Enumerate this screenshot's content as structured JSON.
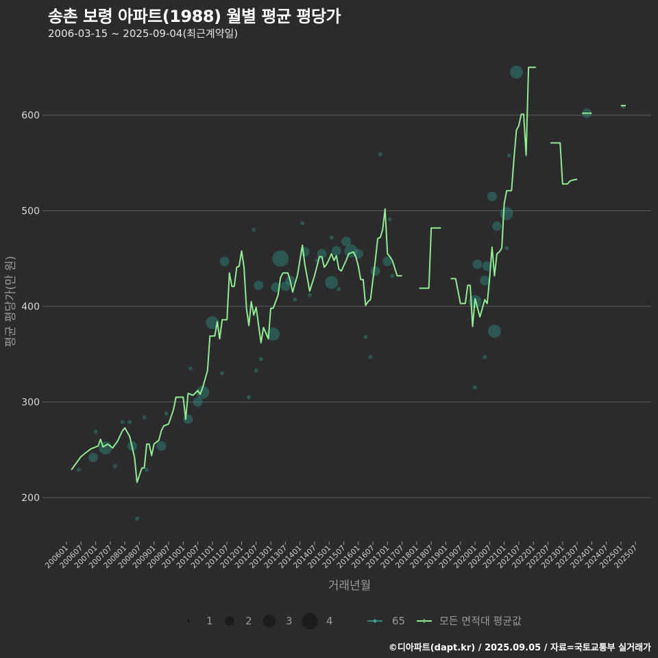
{
  "title": "송촌 보령 아파트(1988) 월별 평균 평당가",
  "subtitle": "2006-03-15 ~ 2025-09-04(최근계약일)",
  "footer": "©디아파트(dapt.kr) / 2025.09.05 / 자료=국토교통부 실거래가",
  "colors": {
    "background": "#2b2a2c",
    "line": "#90ee90",
    "bubble": "#2e8b80",
    "grid": "#5e5e5e"
  },
  "chart_data": {
    "type": "line",
    "title": "송촌 보령 아파트(1988) 월별 평균 평당가",
    "xlabel": "거래년월",
    "ylabel": "평균 평당가(만 원)",
    "ylim": [
      150,
      665
    ],
    "yticks": [
      200,
      300,
      400,
      500,
      600
    ],
    "xticks": [
      "200601",
      "200607",
      "200701",
      "200707",
      "200801",
      "200807",
      "200901",
      "200907",
      "201001",
      "201007",
      "201101",
      "201107",
      "201201",
      "201207",
      "201301",
      "201307",
      "201401",
      "201407",
      "201501",
      "201507",
      "201601",
      "201607",
      "201701",
      "201707",
      "201801",
      "201807",
      "201901",
      "201907",
      "202001",
      "202007",
      "202101",
      "202107",
      "202201",
      "202207",
      "202301",
      "202307",
      "202401",
      "202407",
      "202501",
      "202507"
    ],
    "grid": true,
    "legend": {
      "position": "bottom",
      "size_title": "",
      "sizes": [
        1,
        2,
        3,
        4
      ],
      "series_labels": [
        "65",
        "모든 면적대 평균값"
      ]
    },
    "line_series": {
      "name": "모든 면적대 평균값",
      "segments": [
        [
          [
            200603,
            229
          ],
          [
            200607,
            243
          ],
          [
            200609,
            247
          ],
          [
            200611,
            251
          ],
          [
            200702,
            254
          ],
          [
            200703,
            261
          ],
          [
            200704,
            253
          ],
          [
            200706,
            256
          ],
          [
            200708,
            252
          ],
          [
            200710,
            259
          ],
          [
            200712,
            270
          ],
          [
            200801,
            273
          ],
          [
            200803,
            264
          ],
          [
            200805,
            242
          ],
          [
            200806,
            216
          ],
          [
            200808,
            231
          ],
          [
            200809,
            231
          ],
          [
            200810,
            256
          ],
          [
            200811,
            256
          ],
          [
            200812,
            244
          ],
          [
            200901,
            256
          ],
          [
            200903,
            260
          ],
          [
            200904,
            270
          ],
          [
            200905,
            275
          ],
          [
            200907,
            277
          ],
          [
            200909,
            292
          ],
          [
            200910,
            305
          ],
          [
            201001,
            305
          ],
          [
            201002,
            282
          ],
          [
            201003,
            309
          ],
          [
            201005,
            307
          ],
          [
            201007,
            312
          ],
          [
            201008,
            308
          ],
          [
            201009,
            315
          ],
          [
            201011,
            333
          ],
          [
            201012,
            369
          ],
          [
            201102,
            369
          ],
          [
            201103,
            384
          ],
          [
            201104,
            366
          ],
          [
            201105,
            386
          ],
          [
            201107,
            386
          ],
          [
            201108,
            435
          ],
          [
            201109,
            421
          ],
          [
            201110,
            421
          ],
          [
            201111,
            441
          ],
          [
            201112,
            442
          ],
          [
            201201,
            458
          ],
          [
            201202,
            441
          ],
          [
            201203,
            398
          ],
          [
            201204,
            380
          ],
          [
            201205,
            405
          ],
          [
            201206,
            391
          ],
          [
            201207,
            399
          ],
          [
            201209,
            362
          ],
          [
            201210,
            378
          ],
          [
            201212,
            366
          ],
          [
            201301,
            398
          ],
          [
            201302,
            398
          ],
          [
            201304,
            412
          ],
          [
            201305,
            430
          ],
          [
            201306,
            435
          ],
          [
            201308,
            435
          ],
          [
            201309,
            427
          ],
          [
            201310,
            415
          ],
          [
            201311,
            424
          ],
          [
            201312,
            433
          ],
          [
            201402,
            464
          ],
          [
            201403,
            444
          ],
          [
            201404,
            430
          ],
          [
            201405,
            416
          ],
          [
            201407,
            432
          ],
          [
            201409,
            452
          ],
          [
            201410,
            452
          ],
          [
            201411,
            441
          ],
          [
            201412,
            444
          ],
          [
            201502,
            455
          ],
          [
            201503,
            448
          ],
          [
            201504,
            453
          ],
          [
            201505,
            439
          ],
          [
            201506,
            437
          ],
          [
            201508,
            448
          ],
          [
            201509,
            455
          ],
          [
            201511,
            457
          ],
          [
            201512,
            452
          ],
          [
            201601,
            442
          ],
          [
            201602,
            428
          ],
          [
            201603,
            428
          ],
          [
            201604,
            401
          ],
          [
            201605,
            405
          ],
          [
            201606,
            407
          ],
          [
            201608,
            448
          ],
          [
            201609,
            471
          ],
          [
            201610,
            472
          ],
          [
            201611,
            480
          ],
          [
            201612,
            502
          ],
          [
            201701,
            455
          ],
          [
            201702,
            452
          ],
          [
            201703,
            448
          ],
          [
            201705,
            432
          ],
          [
            201707,
            432
          ]
        ],
        [
          [
            201802,
            419
          ],
          [
            201806,
            419
          ],
          [
            201807,
            482
          ],
          [
            201811,
            482
          ]
        ],
        [
          [
            201903,
            429
          ],
          [
            201905,
            429
          ],
          [
            201907,
            403
          ],
          [
            201909,
            403
          ],
          [
            201910,
            422
          ],
          [
            201911,
            422
          ],
          [
            201912,
            379
          ],
          [
            202001,
            408
          ],
          [
            202003,
            389
          ],
          [
            202005,
            407
          ],
          [
            202006,
            403
          ],
          [
            202007,
            430
          ],
          [
            202008,
            462
          ],
          [
            202009,
            432
          ],
          [
            202010,
            455
          ],
          [
            202011,
            457
          ],
          [
            202012,
            461
          ],
          [
            202101,
            507
          ],
          [
            202102,
            521
          ],
          [
            202104,
            521
          ],
          [
            202105,
            554
          ],
          [
            202106,
            584
          ],
          [
            202107,
            589
          ],
          [
            202108,
            601
          ],
          [
            202109,
            601
          ],
          [
            202110,
            558
          ],
          [
            202111,
            650
          ],
          [
            202202,
            650
          ]
        ],
        [
          [
            202208,
            571
          ],
          [
            202212,
            571
          ],
          [
            202301,
            528
          ],
          [
            202303,
            528
          ],
          [
            202304,
            531
          ],
          [
            202305,
            532
          ],
          [
            202307,
            533
          ]
        ],
        [
          [
            202309,
            602
          ],
          [
            202401,
            602
          ]
        ],
        [
          [
            202501,
            610
          ],
          [
            202503,
            610
          ]
        ]
      ]
    },
    "bubble_series": {
      "name": "65",
      "points": [
        [
          200606,
          229,
          1
        ],
        [
          200612,
          242,
          2
        ],
        [
          200705,
          252,
          3
        ],
        [
          200701,
          269,
          1
        ],
        [
          200709,
          233,
          1
        ],
        [
          200712,
          279,
          1
        ],
        [
          200803,
          279,
          1
        ],
        [
          200804,
          254,
          2
        ],
        [
          200806,
          178,
          1
        ],
        [
          200809,
          284,
          1
        ],
        [
          200810,
          229,
          1
        ],
        [
          200904,
          254,
          2
        ],
        [
          200906,
          288,
          1
        ],
        [
          201003,
          282,
          2
        ],
        [
          201004,
          335,
          1
        ],
        [
          201007,
          300,
          2
        ],
        [
          201009,
          310,
          3
        ],
        [
          201101,
          383,
          3
        ],
        [
          201105,
          330,
          1
        ],
        [
          201106,
          447,
          2
        ],
        [
          201204,
          305,
          1
        ],
        [
          201206,
          480,
          1
        ],
        [
          201207,
          333,
          1
        ],
        [
          201208,
          422,
          2
        ],
        [
          201209,
          345,
          1
        ],
        [
          201302,
          371,
          3
        ],
        [
          201303,
          420,
          2
        ],
        [
          201305,
          450,
          4
        ],
        [
          201307,
          421,
          2
        ],
        [
          201309,
          427,
          2
        ],
        [
          201311,
          407,
          1
        ],
        [
          201402,
          487,
          1
        ],
        [
          201403,
          457,
          2
        ],
        [
          201405,
          412,
          1
        ],
        [
          201408,
          448,
          1
        ],
        [
          201410,
          455,
          2
        ],
        [
          201502,
          425,
          3
        ],
        [
          201502,
          472,
          1
        ],
        [
          201504,
          458,
          2
        ],
        [
          201505,
          418,
          1
        ],
        [
          201508,
          468,
          2
        ],
        [
          201510,
          458,
          3
        ],
        [
          201601,
          455,
          2
        ],
        [
          201604,
          368,
          1
        ],
        [
          201606,
          347,
          1
        ],
        [
          201608,
          437,
          2
        ],
        [
          201610,
          559,
          1
        ],
        [
          201701,
          447,
          2
        ],
        [
          201702,
          491,
          1
        ],
        [
          201703,
          432,
          1
        ],
        [
          202001,
          315,
          1
        ],
        [
          202001,
          405,
          3
        ],
        [
          202002,
          444,
          2
        ],
        [
          202005,
          427,
          2
        ],
        [
          202005,
          347,
          1
        ],
        [
          202006,
          442,
          2
        ],
        [
          202008,
          515,
          2
        ],
        [
          202009,
          374,
          3
        ],
        [
          202010,
          484,
          2
        ],
        [
          202102,
          497,
          3
        ],
        [
          202102,
          461,
          1
        ],
        [
          202103,
          558,
          1
        ],
        [
          202106,
          645,
          3
        ],
        [
          202311,
          602,
          2
        ],
        [
          202502,
          609,
          1
        ]
      ]
    }
  }
}
